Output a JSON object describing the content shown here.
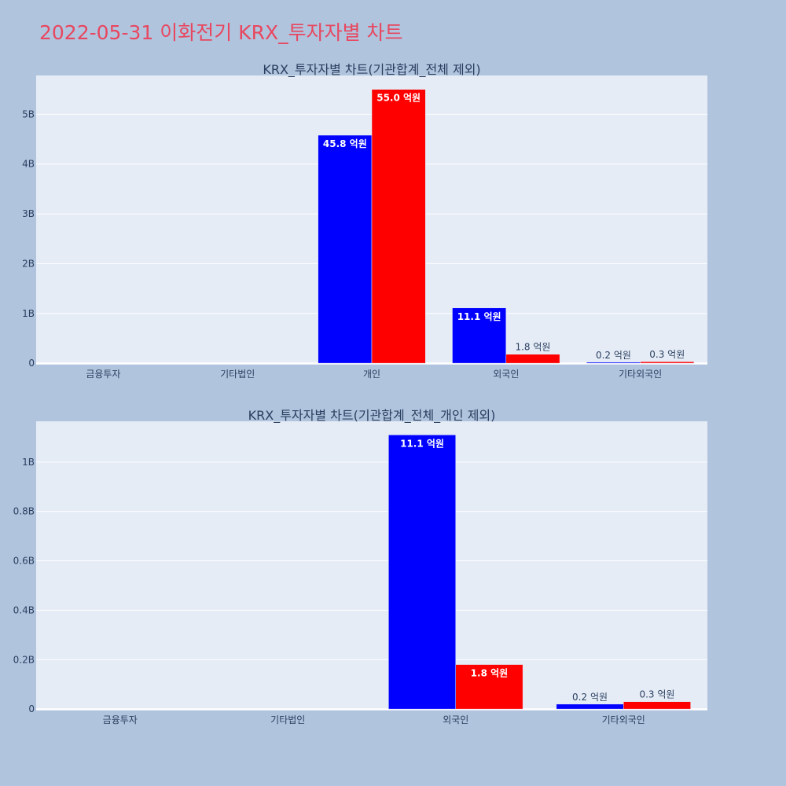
{
  "title": "2022-05-31 이화전기 KRX_투자자별 차트",
  "colors": {
    "background": "#b0c4de",
    "plot_bg": "#e5ecf6",
    "title": "#e8475f",
    "series_a": "#0000ff",
    "series_b": "#ff0000"
  },
  "chart_data": [
    {
      "type": "bar",
      "title": "KRX_투자자별 차트(기관합계_전체 제외)",
      "categories": [
        "금융투자",
        "기타법인",
        "개인",
        "외국인",
        "기타외국인"
      ],
      "series": [
        {
          "color": "#0000ff",
          "values": [
            0,
            0,
            4580000000,
            1110000000,
            20000000
          ],
          "labels": [
            "",
            "",
            "45.8 억원",
            "11.1 억원",
            "0.2 억원"
          ]
        },
        {
          "color": "#ff0000",
          "values": [
            0,
            0,
            5500000000,
            180000000,
            30000000
          ],
          "labels": [
            "",
            "",
            "55.0 억원",
            "1.8 억원",
            "0.3 억원"
          ]
        }
      ],
      "yticks": [
        0,
        1000000000,
        2000000000,
        3000000000,
        4000000000,
        5000000000
      ],
      "ytick_labels": [
        "0",
        "1B",
        "2B",
        "3B",
        "4B",
        "5B"
      ],
      "ylim": [
        -30000000,
        5780000000
      ],
      "grid": true,
      "legend": "none"
    },
    {
      "type": "bar",
      "title": "KRX_투자자별 차트(기관합계_전체_개인 제외)",
      "categories": [
        "금융투자",
        "기타법인",
        "외국인",
        "기타외국인"
      ],
      "series": [
        {
          "color": "#0000ff",
          "values": [
            0,
            0,
            1110000000,
            20000000
          ],
          "labels": [
            "",
            "",
            "11.1 억원",
            "0.2 억원"
          ]
        },
        {
          "color": "#ff0000",
          "values": [
            0,
            0,
            180000000,
            30000000
          ],
          "labels": [
            "",
            "",
            "1.8 억원",
            "0.3 억원"
          ]
        }
      ],
      "yticks": [
        0,
        200000000,
        400000000,
        600000000,
        800000000,
        1000000000
      ],
      "ytick_labels": [
        "0",
        "0.2B",
        "0.4B",
        "0.6B",
        "0.8B",
        "1B"
      ],
      "ylim": [
        -6000000,
        1165000000
      ],
      "grid": true,
      "legend": "none"
    }
  ]
}
